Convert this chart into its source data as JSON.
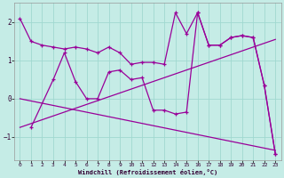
{
  "xlabel": "Windchill (Refroidissement éolien,°C)",
  "background_color": "#c5ece6",
  "line_color": "#990099",
  "grid_color": "#a0d8d0",
  "xlim": [
    -0.5,
    23.5
  ],
  "ylim": [
    -1.6,
    2.5
  ],
  "yticks": [
    -1,
    0,
    1,
    2
  ],
  "xticks": [
    0,
    1,
    2,
    3,
    4,
    5,
    6,
    7,
    8,
    9,
    10,
    11,
    12,
    13,
    14,
    15,
    16,
    17,
    18,
    19,
    20,
    21,
    22,
    23
  ],
  "series1_x": [
    0,
    1,
    2,
    3,
    4,
    5,
    6,
    7,
    8,
    9,
    10,
    11,
    12,
    13,
    14,
    15,
    16,
    17,
    18,
    19,
    20,
    21,
    22,
    23
  ],
  "series1_y": [
    2.1,
    1.5,
    1.4,
    1.35,
    1.3,
    1.35,
    1.3,
    1.2,
    1.35,
    1.2,
    0.9,
    0.95,
    0.95,
    0.9,
    2.25,
    1.7,
    2.25,
    1.4,
    1.4,
    1.6,
    1.65,
    1.6,
    0.35,
    -1.45
  ],
  "series2_x": [
    1,
    3,
    4,
    5,
    6,
    7,
    8,
    9,
    10,
    11,
    12,
    13,
    14,
    15,
    16,
    17,
    18,
    19,
    20,
    21,
    22,
    23
  ],
  "series2_y": [
    -0.75,
    0.5,
    1.2,
    0.45,
    0.0,
    0.0,
    0.7,
    0.75,
    0.5,
    0.55,
    -0.3,
    -0.3,
    -0.4,
    -0.35,
    2.25,
    1.4,
    1.4,
    1.6,
    1.65,
    1.6,
    0.35,
    -1.45
  ],
  "trend1_x": [
    0,
    23
  ],
  "trend1_y": [
    0.0,
    -1.35
  ],
  "trend2_x": [
    0,
    23
  ],
  "trend2_y": [
    -0.75,
    1.55
  ]
}
